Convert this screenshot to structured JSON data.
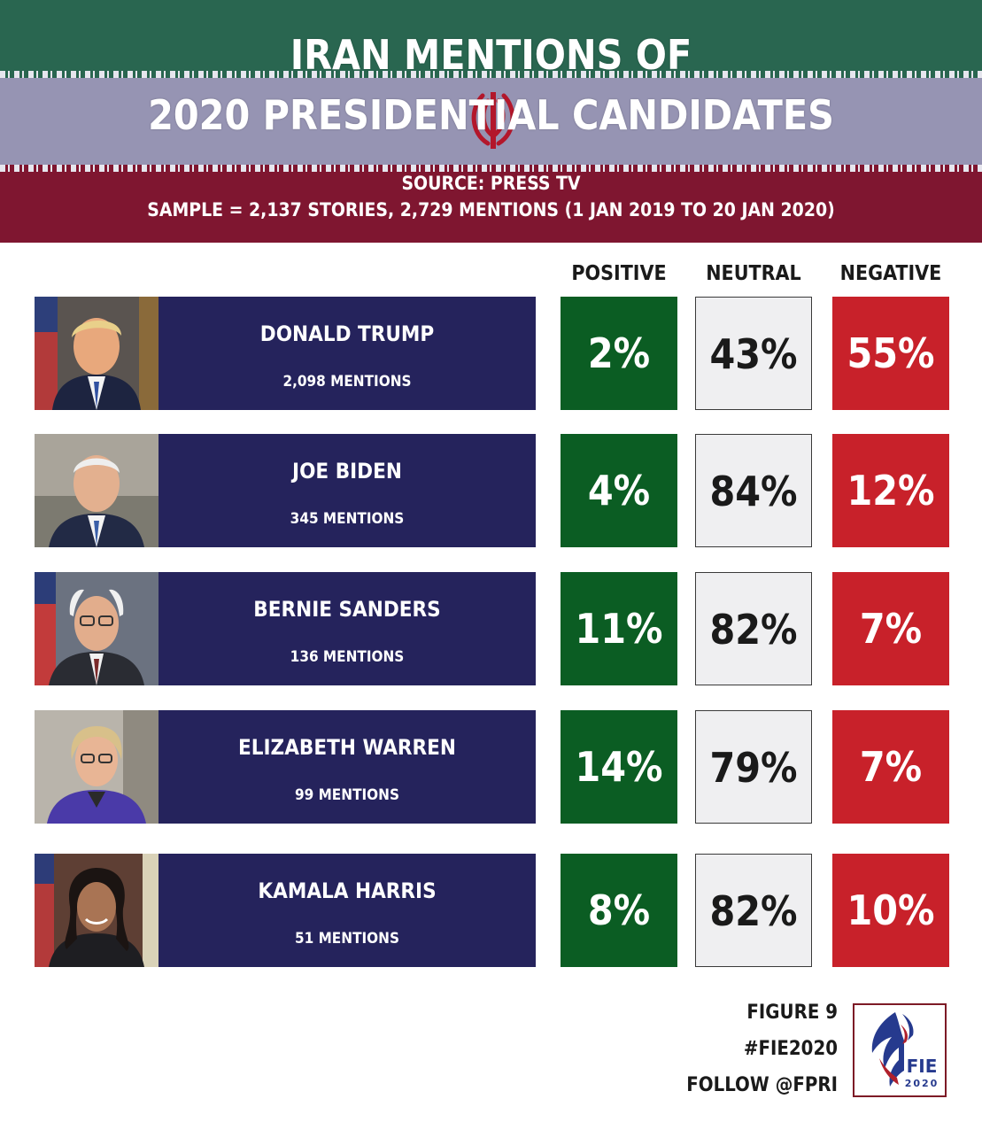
{
  "header": {
    "title_line1": "IRAN MENTIONS OF",
    "title_line2": "2020 PRESIDENTIAL CANDIDATES",
    "source": "SOURCE: PRESS TV",
    "sample": "SAMPLE = 2,137 STORIES, 2,729 MENTIONS (1 JAN 2019 TO 20 JAN 2020)"
  },
  "colors": {
    "positive": "#0b5d23",
    "neutral": "#efeff1",
    "negative": "#c8212a",
    "name_box": "#25235c",
    "flag_green": "#296650",
    "flag_white": "#9694b3",
    "flag_red": "#7f1630"
  },
  "chart_data": {
    "type": "table",
    "columns": [
      "POSITIVE",
      "NEUTRAL",
      "NEGATIVE"
    ],
    "rows": [
      {
        "name": "DONALD TRUMP",
        "mentions": "2,098 MENTIONS",
        "positive": "2%",
        "neutral": "43%",
        "negative": "55%"
      },
      {
        "name": "JOE BIDEN",
        "mentions": "345 MENTIONS",
        "positive": "4%",
        "neutral": "84%",
        "negative": "12%"
      },
      {
        "name": "BERNIE SANDERS",
        "mentions": "136 MENTIONS",
        "positive": "11%",
        "neutral": "82%",
        "negative": "7%"
      },
      {
        "name": "ELIZABETH WARREN",
        "mentions": "99 MENTIONS",
        "positive": "14%",
        "neutral": "79%",
        "negative": "7%"
      },
      {
        "name": "KAMALA HARRIS",
        "mentions": "51 MENTIONS",
        "positive": "8%",
        "neutral": "82%",
        "negative": "10%"
      }
    ]
  },
  "footer": {
    "figure": "FIGURE 9",
    "hashtag": "#FIE2020",
    "follow": "FOLLOW @FPRI",
    "logo_text": "FIE",
    "logo_year": "2020"
  }
}
